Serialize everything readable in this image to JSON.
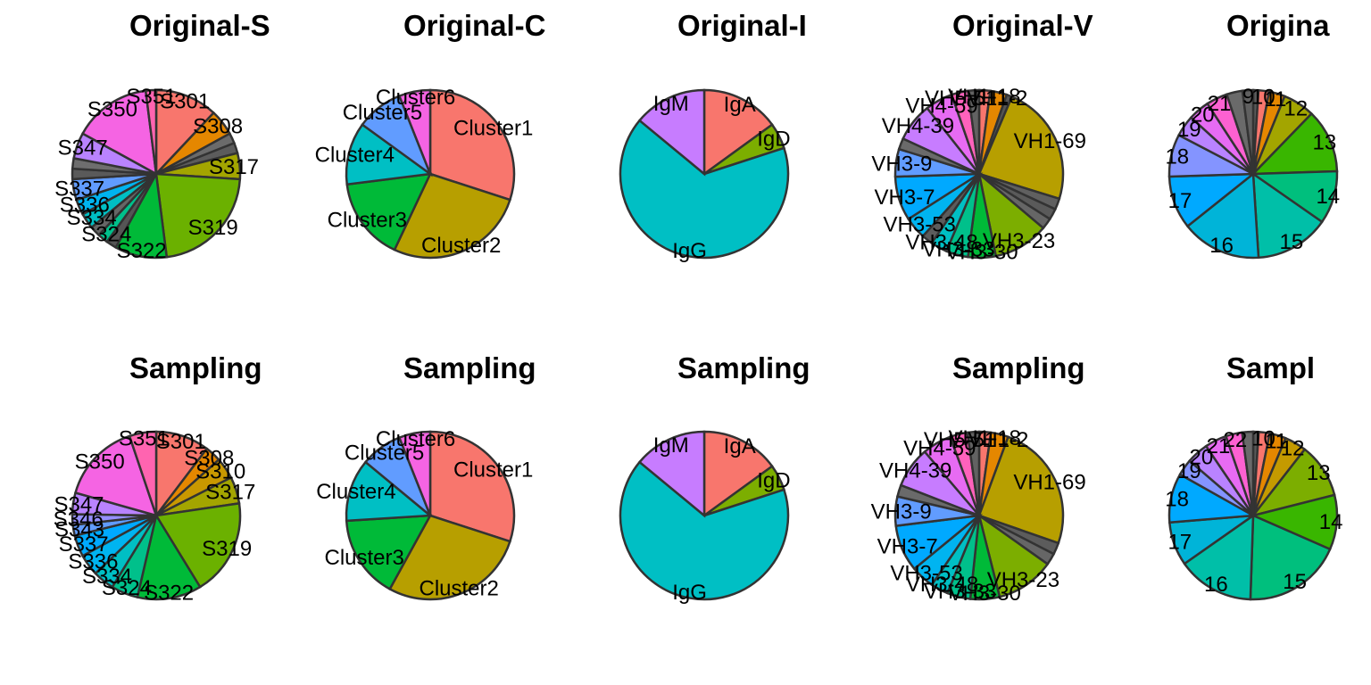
{
  "figure": {
    "panels": [
      {
        "title": "Original-S",
        "type": "pie",
        "slices": [
          {
            "label": "S301",
            "value": 12,
            "color": "#f8766d"
          },
          {
            "label": "S308",
            "value": 5,
            "color": "#e58700"
          },
          {
            "label": "",
            "value": 2,
            "color": "#6b6b6b"
          },
          {
            "label": "",
            "value": 2,
            "color": "#5c5c5c"
          },
          {
            "label": "S317",
            "value": 5,
            "color": "#a3a500"
          },
          {
            "label": "S319",
            "value": 22,
            "color": "#6bb100"
          },
          {
            "label": "S322",
            "value": 10,
            "color": "#00ba38"
          },
          {
            "label": "",
            "value": 2,
            "color": "#555555"
          },
          {
            "label": "S324",
            "value": 2,
            "color": "#00c08b"
          },
          {
            "label": "",
            "value": 2,
            "color": "#666666"
          },
          {
            "label": "S334",
            "value": 3,
            "color": "#00bfc4"
          },
          {
            "label": "S336",
            "value": 3,
            "color": "#00b4f0"
          },
          {
            "label": "S337",
            "value": 4,
            "color": "#619cff"
          },
          {
            "label": "",
            "value": 2,
            "color": "#5a5a5a"
          },
          {
            "label": "",
            "value": 2,
            "color": "#6e6e6e"
          },
          {
            "label": "S347",
            "value": 5,
            "color": "#b983ff"
          },
          {
            "label": "S350",
            "value": 15,
            "color": "#f564e3"
          },
          {
            "label": "S351",
            "value": 2,
            "color": "#ff64b0"
          }
        ]
      },
      {
        "title": "Original-C",
        "type": "pie",
        "slices": [
          {
            "label": "Cluster1",
            "value": 30,
            "color": "#f8766d"
          },
          {
            "label": "Cluster2",
            "value": 27,
            "color": "#b79f00"
          },
          {
            "label": "Cluster3",
            "value": 16,
            "color": "#00ba38"
          },
          {
            "label": "Cluster4",
            "value": 12,
            "color": "#00bfc4"
          },
          {
            "label": "Cluster5",
            "value": 9,
            "color": "#619cff"
          },
          {
            "label": "Cluster6",
            "value": 6,
            "color": "#f564e3"
          }
        ]
      },
      {
        "title": "Original-I",
        "type": "pie",
        "slices": [
          {
            "label": "IgA",
            "value": 15,
            "color": "#f8766d"
          },
          {
            "label": "IgD",
            "value": 5,
            "color": "#7cae00"
          },
          {
            "label": "IgG",
            "value": 66,
            "color": "#00bfc4"
          },
          {
            "label": "IgM",
            "value": 14,
            "color": "#c77cff"
          }
        ]
      },
      {
        "title": "Original-V",
        "type": "pie",
        "slices": [
          {
            "label": "VH1-18",
            "value": 2,
            "color": "#f8766d"
          },
          {
            "label": "VH1-2",
            "value": 3,
            "color": "#e58700"
          },
          {
            "label": "",
            "value": 1,
            "color": "#555555"
          },
          {
            "label": "VH1-69",
            "value": 22,
            "color": "#b79f00"
          },
          {
            "label": "",
            "value": 2,
            "color": "#606060"
          },
          {
            "label": "",
            "value": 2,
            "color": "#5a5a5a"
          },
          {
            "label": "",
            "value": 2,
            "color": "#666666"
          },
          {
            "label": "VH3-23",
            "value": 10,
            "color": "#7cae00"
          },
          {
            "label": "VH3-30",
            "value": 5,
            "color": "#00ba38"
          },
          {
            "label": "VH3-33",
            "value": 4,
            "color": "#00c08b"
          },
          {
            "label": "VH3-48",
            "value": 3,
            "color": "#00bfc4"
          },
          {
            "label": "",
            "value": 2,
            "color": "#5c5c5c"
          },
          {
            "label": "VH3-53",
            "value": 4,
            "color": "#00b4f0"
          },
          {
            "label": "VH3-7",
            "value": 8,
            "color": "#00a9ff"
          },
          {
            "label": "VH3-9",
            "value": 5,
            "color": "#619cff"
          },
          {
            "label": "",
            "value": 2,
            "color": "#6a6a6a"
          },
          {
            "label": "VH4-39",
            "value": 7,
            "color": "#c77cff"
          },
          {
            "label": "VH4-59",
            "value": 5,
            "color": "#e76bf3"
          },
          {
            "label": "VH5-51",
            "value": 3,
            "color": "#ff62bc"
          },
          {
            "label": "",
            "value": 2,
            "color": "#626262"
          }
        ]
      },
      {
        "title": "Origina",
        "type": "pie",
        "slices": [
          {
            "label": "",
            "value": 1,
            "color": "#5a5a5a"
          },
          {
            "label": "10",
            "value": 2,
            "color": "#f8766d"
          },
          {
            "label": "11",
            "value": 3,
            "color": "#e58700"
          },
          {
            "label": "12",
            "value": 6,
            "color": "#a3a500"
          },
          {
            "label": "13",
            "value": 12,
            "color": "#39b600"
          },
          {
            "label": "14",
            "value": 10,
            "color": "#00bf7d"
          },
          {
            "label": "15",
            "value": 14,
            "color": "#00bfa8"
          },
          {
            "label": "16",
            "value": 15,
            "color": "#00b4d8"
          },
          {
            "label": "17",
            "value": 10,
            "color": "#00a9ff"
          },
          {
            "label": "18",
            "value": 8,
            "color": "#8494ff"
          },
          {
            "label": "19",
            "value": 4,
            "color": "#b983ff"
          },
          {
            "label": "20",
            "value": 4,
            "color": "#e76bf3"
          },
          {
            "label": "21",
            "value": 4,
            "color": "#fd61d1"
          },
          {
            "label": "",
            "value": 3,
            "color": "#6a6a6a"
          },
          {
            "label": "9",
            "value": 2,
            "color": "#606060"
          }
        ]
      },
      {
        "title": "Sampling",
        "type": "pie",
        "slices": [
          {
            "label": "S301",
            "value": 10,
            "color": "#f8766d"
          },
          {
            "label": "S308",
            "value": 3,
            "color": "#e58700"
          },
          {
            "label": "S310",
            "value": 4,
            "color": "#c99800"
          },
          {
            "label": "S317",
            "value": 5,
            "color": "#a3a500"
          },
          {
            "label": "S319",
            "value": 18,
            "color": "#6bb100"
          },
          {
            "label": "S322",
            "value": 12,
            "color": "#00ba38"
          },
          {
            "label": "S324",
            "value": 5,
            "color": "#00c08b"
          },
          {
            "label": "S334",
            "value": 4,
            "color": "#00bfc4"
          },
          {
            "label": "S336",
            "value": 4,
            "color": "#00b4f0"
          },
          {
            "label": "S337",
            "value": 4,
            "color": "#00a9ff"
          },
          {
            "label": "S343",
            "value": 2,
            "color": "#619cff"
          },
          {
            "label": "S346",
            "value": 2,
            "color": "#9590ff"
          },
          {
            "label": "S347",
            "value": 4,
            "color": "#b983ff"
          },
          {
            "label": "S350",
            "value": 15,
            "color": "#f564e3"
          },
          {
            "label": "S351",
            "value": 5,
            "color": "#ff64b0"
          }
        ]
      },
      {
        "title": "Sampling",
        "type": "pie",
        "slices": [
          {
            "label": "Cluster1",
            "value": 30,
            "color": "#f8766d"
          },
          {
            "label": "Cluster2",
            "value": 28,
            "color": "#b79f00"
          },
          {
            "label": "Cluster3",
            "value": 16,
            "color": "#00ba38"
          },
          {
            "label": "Cluster4",
            "value": 12,
            "color": "#00bfc4"
          },
          {
            "label": "Cluster5",
            "value": 8,
            "color": "#619cff"
          },
          {
            "label": "Cluster6",
            "value": 6,
            "color": "#f564e3"
          }
        ]
      },
      {
        "title": "Sampling",
        "type": "pie",
        "slices": [
          {
            "label": "IgA",
            "value": 15,
            "color": "#f8766d"
          },
          {
            "label": "IgD",
            "value": 5,
            "color": "#7cae00"
          },
          {
            "label": "IgG",
            "value": 66,
            "color": "#00bfc4"
          },
          {
            "label": "IgM",
            "value": 14,
            "color": "#c77cff"
          }
        ]
      },
      {
        "title": "Sampling",
        "type": "pie",
        "slices": [
          {
            "label": "VH1-18",
            "value": 2,
            "color": "#f8766d"
          },
          {
            "label": "VH1-2",
            "value": 3,
            "color": "#e58700"
          },
          {
            "label": "VH1-69",
            "value": 22,
            "color": "#b79f00"
          },
          {
            "label": "",
            "value": 2,
            "color": "#5c5c5c"
          },
          {
            "label": "",
            "value": 2,
            "color": "#666666"
          },
          {
            "label": "VH3-23",
            "value": 10,
            "color": "#7cae00"
          },
          {
            "label": "VH3-30",
            "value": 5,
            "color": "#00ba38"
          },
          {
            "label": "VH3-33",
            "value": 4,
            "color": "#00c08b"
          },
          {
            "label": "VH3-48",
            "value": 3,
            "color": "#00bfc4"
          },
          {
            "label": "VH3-53",
            "value": 4,
            "color": "#00b4f0"
          },
          {
            "label": "VH3-7",
            "value": 8,
            "color": "#00a9ff"
          },
          {
            "label": "VH3-9",
            "value": 5,
            "color": "#619cff"
          },
          {
            "label": "",
            "value": 2,
            "color": "#6a6a6a"
          },
          {
            "label": "VH4-39",
            "value": 7,
            "color": "#c77cff"
          },
          {
            "label": "VH4-59",
            "value": 5,
            "color": "#e76bf3"
          },
          {
            "label": "VH5-51",
            "value": 3,
            "color": "#ff62bc"
          },
          {
            "label": "",
            "value": 2,
            "color": "#626262"
          }
        ]
      },
      {
        "title": "Sampl",
        "type": "pie",
        "slices": [
          {
            "label": "",
            "value": 1,
            "color": "#5a5a5a"
          },
          {
            "label": "10",
            "value": 2,
            "color": "#f8766d"
          },
          {
            "label": "11",
            "value": 3,
            "color": "#e58700"
          },
          {
            "label": "12",
            "value": 4,
            "color": "#c49a00"
          },
          {
            "label": "13",
            "value": 10,
            "color": "#7cae00"
          },
          {
            "label": "14",
            "value": 10,
            "color": "#39b600"
          },
          {
            "label": "15",
            "value": 18,
            "color": "#00bf7d"
          },
          {
            "label": "16",
            "value": 14,
            "color": "#00bfa8"
          },
          {
            "label": "17",
            "value": 8,
            "color": "#00b4d8"
          },
          {
            "label": "18",
            "value": 9,
            "color": "#00a9ff"
          },
          {
            "label": "19",
            "value": 3,
            "color": "#8494ff"
          },
          {
            "label": "20",
            "value": 4,
            "color": "#b983ff"
          },
          {
            "label": "21",
            "value": 4,
            "color": "#e76bf3"
          },
          {
            "label": "22",
            "value": 3,
            "color": "#fd61d1"
          },
          {
            "label": "",
            "value": 2,
            "color": "#6a6a6a"
          }
        ]
      }
    ]
  },
  "chart_data": [
    {
      "type": "pie",
      "title": "Original-S",
      "categories": [
        "S301",
        "S308",
        "S317",
        "S319",
        "S322",
        "S324",
        "S334",
        "S336",
        "S337",
        "S347",
        "S350",
        "S351"
      ],
      "values": [
        12,
        5,
        5,
        22,
        10,
        2,
        3,
        3,
        4,
        5,
        15,
        2
      ]
    },
    {
      "type": "pie",
      "title": "Original-C",
      "categories": [
        "Cluster1",
        "Cluster2",
        "Cluster3",
        "Cluster4",
        "Cluster5",
        "Cluster6"
      ],
      "values": [
        30,
        27,
        16,
        12,
        9,
        6
      ]
    },
    {
      "type": "pie",
      "title": "Original-I",
      "categories": [
        "IgA",
        "IgD",
        "IgG",
        "IgM"
      ],
      "values": [
        15,
        5,
        66,
        14
      ]
    },
    {
      "type": "pie",
      "title": "Original-V",
      "categories": [
        "VH1-18",
        "VH1-2",
        "VH1-69",
        "VH3-23",
        "VH3-30",
        "VH3-33",
        "VH3-48",
        "VH3-53",
        "VH3-7",
        "VH3-9",
        "VH4-39",
        "VH4-59",
        "VH5-51"
      ],
      "values": [
        2,
        3,
        22,
        10,
        5,
        4,
        3,
        4,
        8,
        5,
        7,
        5,
        3
      ]
    },
    {
      "type": "pie",
      "title": "Origina",
      "categories": [
        "9",
        "10",
        "11",
        "12",
        "13",
        "14",
        "15",
        "16",
        "17",
        "18",
        "19",
        "20",
        "21"
      ],
      "values": [
        2,
        2,
        3,
        6,
        12,
        10,
        14,
        15,
        10,
        8,
        4,
        4,
        4
      ]
    },
    {
      "type": "pie",
      "title": "Sampling",
      "categories": [
        "S301",
        "S308",
        "S310",
        "S317",
        "S319",
        "S322",
        "S324",
        "S334",
        "S336",
        "S337",
        "S343",
        "S346",
        "S347",
        "S350",
        "S351"
      ],
      "values": [
        10,
        3,
        4,
        5,
        18,
        12,
        5,
        4,
        4,
        4,
        2,
        2,
        4,
        15,
        5
      ]
    },
    {
      "type": "pie",
      "title": "Sampling",
      "categories": [
        "Cluster1",
        "Cluster2",
        "Cluster3",
        "Cluster4",
        "Cluster5",
        "Cluster6"
      ],
      "values": [
        30,
        28,
        16,
        12,
        8,
        6
      ]
    },
    {
      "type": "pie",
      "title": "Sampling",
      "categories": [
        "IgA",
        "IgD",
        "IgG",
        "IgM"
      ],
      "values": [
        15,
        5,
        66,
        14
      ]
    },
    {
      "type": "pie",
      "title": "Sampling",
      "categories": [
        "VH1-18",
        "VH1-2",
        "VH1-69",
        "VH3-23",
        "VH3-30",
        "VH3-33",
        "VH3-48",
        "VH3-53",
        "VH3-7",
        "VH3-9",
        "VH4-39",
        "VH4-59",
        "VH5-51"
      ],
      "values": [
        2,
        3,
        22,
        10,
        5,
        4,
        3,
        4,
        8,
        5,
        7,
        5,
        3
      ]
    },
    {
      "type": "pie",
      "title": "Sampl",
      "categories": [
        "10",
        "11",
        "12",
        "13",
        "14",
        "15",
        "16",
        "17",
        "18",
        "19",
        "20",
        "21",
        "22"
      ],
      "values": [
        2,
        3,
        4,
        10,
        10,
        18,
        14,
        8,
        9,
        3,
        4,
        4,
        3
      ]
    }
  ]
}
